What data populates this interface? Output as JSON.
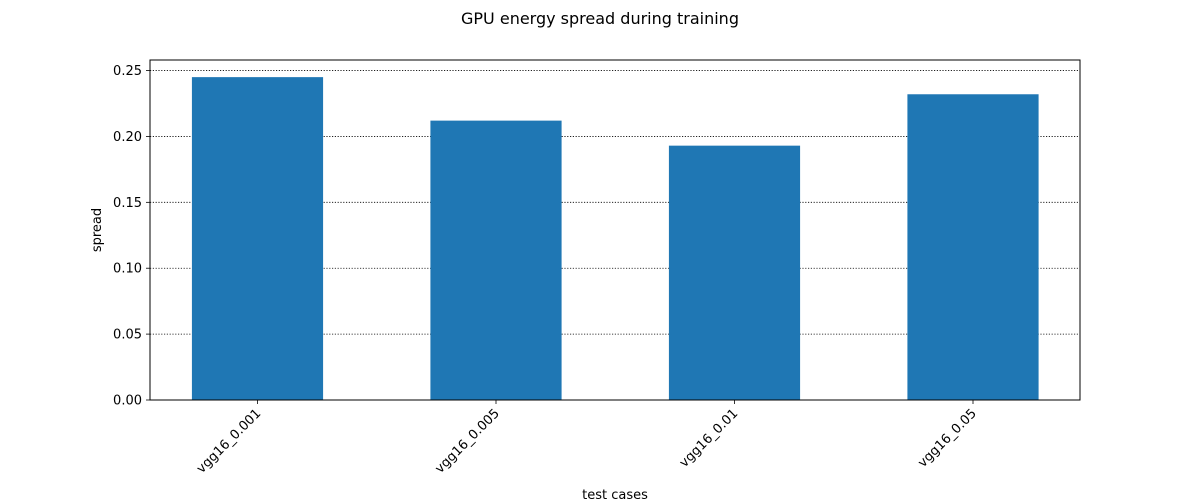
{
  "chart_data": {
    "type": "bar",
    "title": "GPU energy spread during training",
    "xlabel": "test cases",
    "ylabel": "spread",
    "categories": [
      "vgg16_0.001",
      "vgg16_0.005",
      "vgg16_0.01",
      "vgg16_0.05"
    ],
    "values": [
      0.245,
      0.212,
      0.193,
      0.232
    ],
    "ylim": [
      0,
      0.258
    ],
    "yticks": [
      0.0,
      0.05,
      0.1,
      0.15,
      0.2,
      0.25
    ],
    "ytick_labels": [
      "0.00",
      "0.05",
      "0.10",
      "0.15",
      "0.20",
      "0.25"
    ],
    "grid": "y-axis, dotted",
    "legend": "none",
    "bar_color": "#1f77b4"
  }
}
